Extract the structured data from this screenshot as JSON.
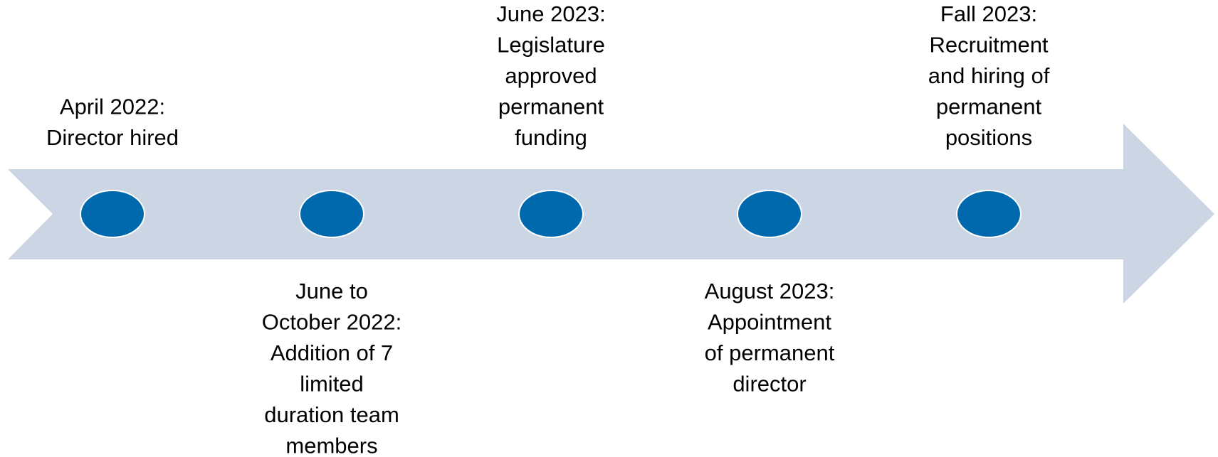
{
  "events": [
    {
      "position": "above",
      "lines": [
        "April 2022:",
        "Director hired"
      ]
    },
    {
      "position": "below",
      "lines": [
        "June to",
        "October 2022:",
        "Addition of 7",
        "limited",
        "duration team",
        "members"
      ]
    },
    {
      "position": "above",
      "lines": [
        "June 2023:",
        "Legislature",
        "approved",
        "permanent",
        "funding"
      ]
    },
    {
      "position": "below",
      "lines": [
        "August 2023:",
        "Appointment",
        "of permanent",
        "director"
      ]
    },
    {
      "position": "above",
      "lines": [
        "Fall 2023:",
        "Recruitment",
        "and hiring of",
        "permanent",
        "positions"
      ]
    }
  ]
}
